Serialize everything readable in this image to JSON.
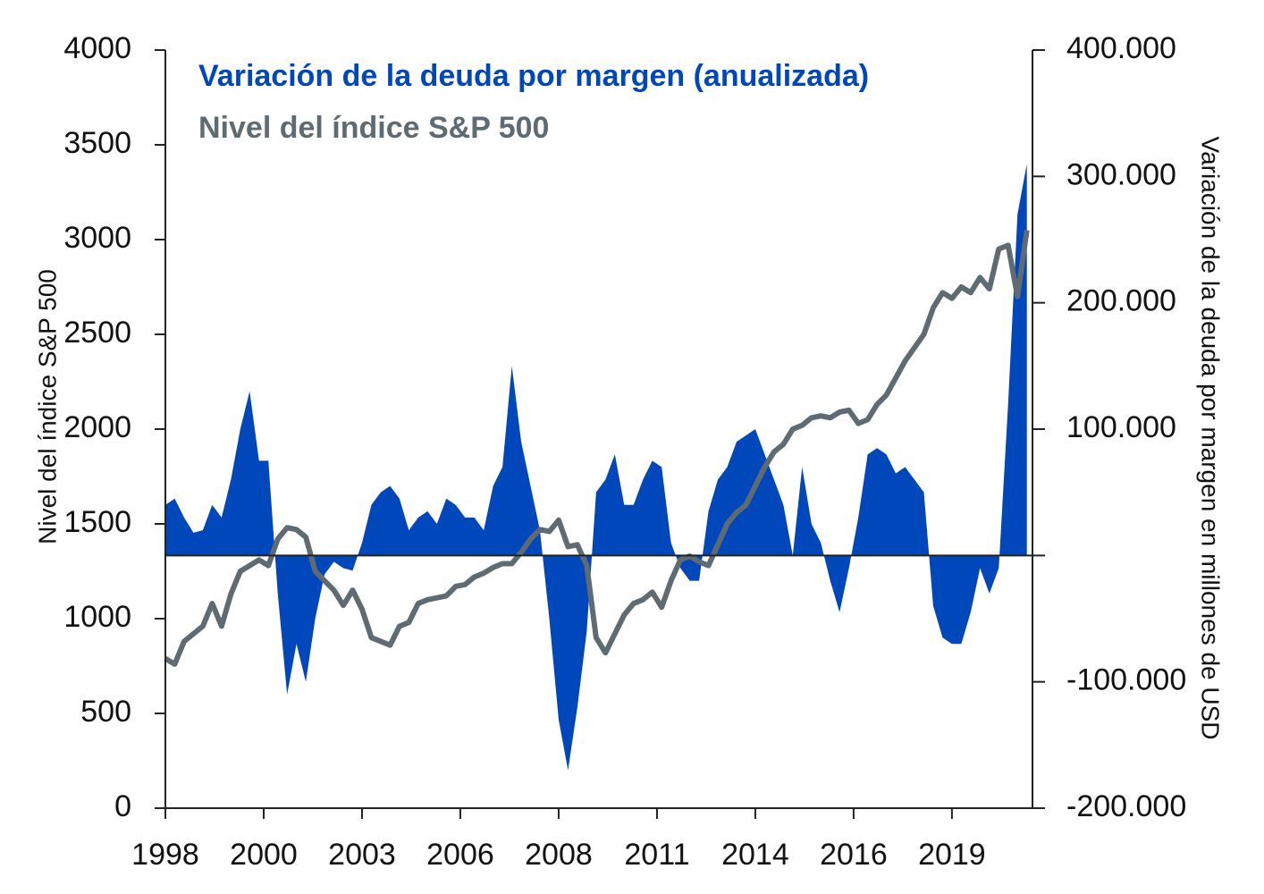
{
  "chart_data": {
    "type": "line",
    "x": [
      1997.8,
      1998.05,
      1998.3,
      1998.55,
      1998.8,
      1999.05,
      1999.3,
      1999.55,
      1999.8,
      2000.05,
      2000.3,
      2000.55,
      2000.8,
      2001.05,
      2001.3,
      2001.55,
      2001.8,
      2002.05,
      2002.3,
      2002.55,
      2002.8,
      2003.05,
      2003.3,
      2003.55,
      2003.8,
      2004.05,
      2004.3,
      2004.55,
      2004.8,
      2005.05,
      2005.3,
      2005.55,
      2005.8,
      2006.05,
      2006.3,
      2006.55,
      2006.8,
      2007.05,
      2007.3,
      2007.55,
      2007.8,
      2008.05,
      2008.3,
      2008.55,
      2008.8,
      2009.05,
      2009.3,
      2009.55,
      2009.8,
      2010.05,
      2010.3,
      2010.55,
      2010.8,
      2011.05,
      2011.3,
      2011.55,
      2011.8,
      2012.05,
      2012.3,
      2012.55,
      2012.8,
      2013.05,
      2013.3,
      2013.55,
      2013.8,
      2014.05,
      2014.3,
      2014.55,
      2014.8,
      2015.05,
      2015.3,
      2015.55,
      2015.8,
      2016.05,
      2016.3,
      2016.55,
      2016.8,
      2017.05,
      2017.3,
      2017.55,
      2017.8,
      2018.05,
      2018.3,
      2018.55,
      2018.8,
      2019.05,
      2019.3,
      2019.55,
      2019.8,
      2020.05,
      2020.3,
      2020.55,
      2020.8
    ],
    "series": [
      {
        "name": "Variación de la deuda por margen (anualizada)",
        "color": "#0047bb",
        "kind": "area",
        "axis": "y2",
        "values": [
          40000,
          45000,
          30000,
          18000,
          20000,
          40000,
          30000,
          60000,
          100000,
          130000,
          75000,
          75000,
          -30000,
          -110000,
          -70000,
          -100000,
          -50000,
          -15000,
          -5000,
          -10000,
          -12000,
          10000,
          40000,
          50000,
          55000,
          45000,
          20000,
          30000,
          35000,
          25000,
          45000,
          40000,
          30000,
          30000,
          20000,
          55000,
          70000,
          150000,
          90000,
          55000,
          20000,
          -50000,
          -130000,
          -170000,
          -120000,
          -60000,
          50000,
          60000,
          80000,
          40000,
          40000,
          60000,
          75000,
          70000,
          10000,
          -10000,
          -20000,
          -20000,
          35000,
          60000,
          70000,
          90000,
          95000,
          100000,
          80000,
          60000,
          40000,
          0,
          70000,
          25000,
          10000,
          -20000,
          -45000,
          -10000,
          30000,
          80000,
          85000,
          80000,
          65000,
          70000,
          60000,
          50000,
          -40000,
          -65000,
          -70000,
          -70000,
          -45000,
          -10000,
          -30000,
          -10000,
          120000,
          270000,
          310000
        ]
      },
      {
        "name": "Nivel del índice S&P 500",
        "color": "#5f6b73",
        "kind": "line",
        "values": [
          790,
          760,
          880,
          920,
          960,
          1080,
          960,
          1130,
          1250,
          1280,
          1310,
          1280,
          1420,
          1480,
          1470,
          1430,
          1250,
          1200,
          1150,
          1070,
          1150,
          1050,
          900,
          880,
          860,
          960,
          980,
          1080,
          1100,
          1110,
          1120,
          1170,
          1180,
          1220,
          1240,
          1270,
          1290,
          1290,
          1350,
          1420,
          1470,
          1460,
          1520,
          1380,
          1390,
          1280,
          900,
          820,
          920,
          1020,
          1080,
          1100,
          1140,
          1060,
          1200,
          1310,
          1330,
          1300,
          1280,
          1390,
          1500,
          1560,
          1600,
          1700,
          1800,
          1880,
          1920,
          2000,
          2020,
          2060,
          2070,
          2060,
          2090,
          2100,
          2030,
          2050,
          2130,
          2180,
          2270,
          2360,
          2430,
          2500,
          2640,
          2720,
          2690,
          2750,
          2720,
          2800,
          2740,
          2950,
          2970,
          2700,
          3050
        ]
      }
    ],
    "y_label": "Nivel del índice S&P 500",
    "y2_label": "Variación de la deuda por margen en millones de USD",
    "xlim": [
      1997.8,
      2020.95
    ],
    "xticks": [
      {
        "value": 1997.8,
        "label": "1998"
      },
      {
        "value": 2000.425,
        "label": "2000"
      },
      {
        "value": 2003.05,
        "label": "2003"
      },
      {
        "value": 2005.675,
        "label": "2006"
      },
      {
        "value": 2008.3,
        "label": "2008"
      },
      {
        "value": 2010.925,
        "label": "2011"
      },
      {
        "value": 2013.55,
        "label": "2014"
      },
      {
        "value": 2016.175,
        "label": "2016"
      },
      {
        "value": 2018.8,
        "label": "2019"
      }
    ],
    "ylim": [
      0,
      4000
    ],
    "yticks": [
      0,
      500,
      1000,
      1500,
      2000,
      2500,
      3000,
      3500,
      4000
    ],
    "y2lim": [
      -200000,
      400000
    ],
    "y2ticks": [
      {
        "value": 400000,
        "label": "400.000"
      },
      {
        "value": 300000,
        "label": "300.000"
      },
      {
        "value": 200000,
        "label": "200.000"
      },
      {
        "value": 100000,
        "label": "100.000"
      },
      {
        "value": -100000,
        "label": "-100.000"
      },
      {
        "value": -200000,
        "label": "-200.000"
      }
    ]
  }
}
